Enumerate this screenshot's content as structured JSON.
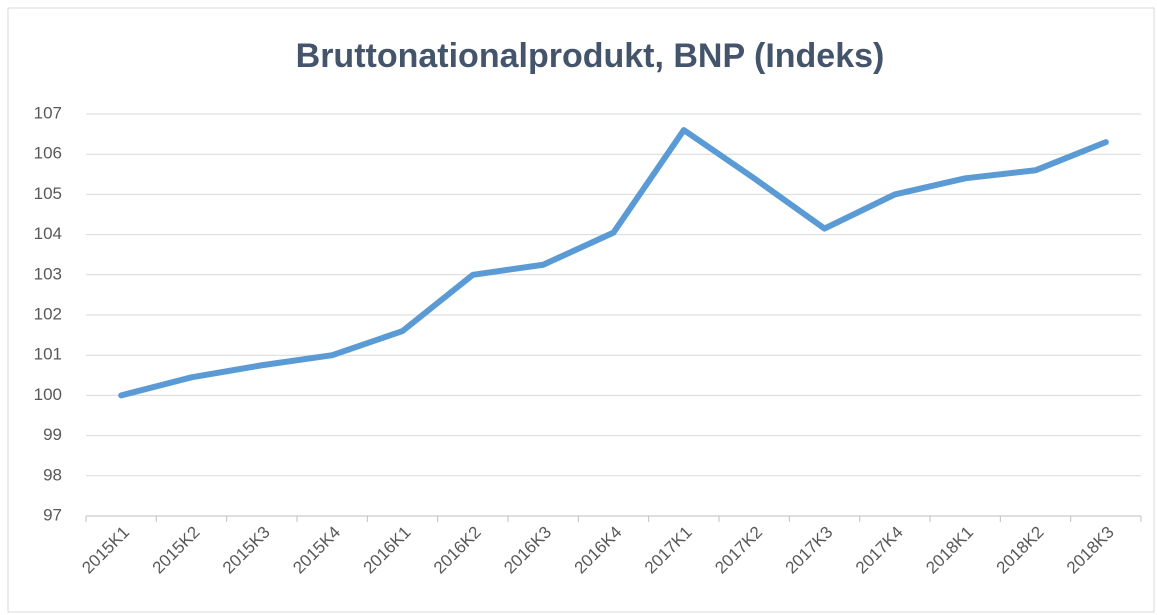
{
  "chart_data": {
    "type": "line",
    "title": "Bruttonationalprodukt, BNP (Indeks)",
    "categories": [
      "2015K1",
      "2015K2",
      "2015K3",
      "2015K4",
      "2016K1",
      "2016K2",
      "2016K3",
      "2016K4",
      "2017K1",
      "2017K2",
      "2017K3",
      "2017K4",
      "2018K1",
      "2018K2",
      "2018K3"
    ],
    "series": [
      {
        "name": "BNP",
        "color": "#5b9bd5",
        "values": [
          100,
          100.45,
          100.75,
          101,
          101.6,
          103,
          103.25,
          104.05,
          106.6,
          105.4,
          104.15,
          105,
          105.4,
          105.6,
          106.3
        ]
      }
    ],
    "ylim": [
      97,
      107
    ],
    "yticks": [
      97,
      98,
      99,
      100,
      101,
      102,
      103,
      104,
      105,
      106,
      107
    ],
    "grid": true,
    "legend": false
  }
}
